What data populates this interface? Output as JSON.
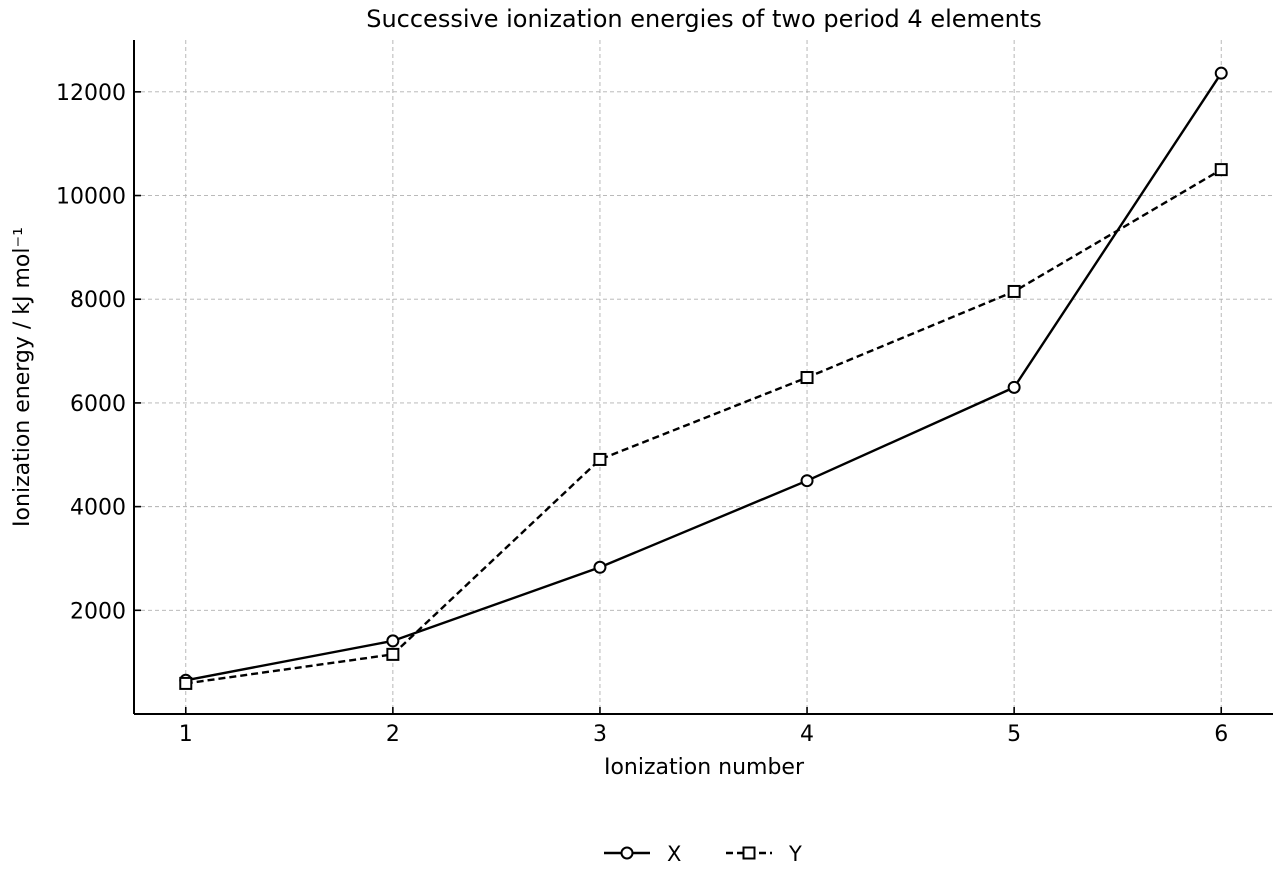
{
  "chart_data": {
    "type": "line",
    "title": "Successive ionization energies of two period 4 elements",
    "xlabel": "Ionization number",
    "ylabel": "Ionization energy / kJ mol⁻¹",
    "x": [
      1,
      2,
      3,
      4,
      5,
      6
    ],
    "xlim": [
      0.75,
      6.25
    ],
    "ylim": [
      0,
      13000
    ],
    "xticks": [
      1,
      2,
      3,
      4,
      5,
      6
    ],
    "yticks": [
      2000,
      4000,
      6000,
      8000,
      10000,
      12000
    ],
    "grid": true,
    "legend_position": "bottom-center",
    "series": [
      {
        "name": "X",
        "values": [
          650,
          1410,
          2830,
          4500,
          6300,
          12360
        ],
        "line_style": "solid",
        "marker": "circle",
        "color": "#000000"
      },
      {
        "name": "Y",
        "values": [
          590,
          1150,
          4910,
          6490,
          8150,
          10500
        ],
        "line_style": "dashed",
        "marker": "square",
        "color": "#000000"
      }
    ]
  }
}
